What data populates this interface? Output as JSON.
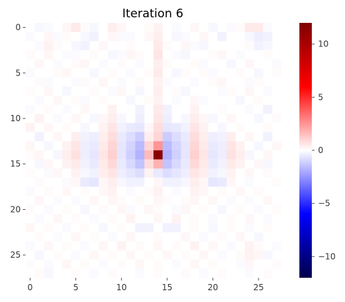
{
  "chart_data": {
    "type": "heatmap",
    "title": "Iteration 6",
    "xlabel": "",
    "ylabel": "",
    "rows": 28,
    "cols": 28,
    "colormap": "seismic",
    "vmin": -12,
    "vmax": 12,
    "x_ticks": [
      0,
      5,
      10,
      15,
      20,
      25
    ],
    "y_ticks": [
      0,
      5,
      10,
      15,
      20,
      25
    ],
    "colorbar_ticks": [
      10,
      5,
      0,
      -5,
      -10
    ],
    "colorbar_tick_labels": [
      "10",
      "5",
      "0",
      "−5",
      "−10"
    ],
    "grid": false,
    "matrix": [
      [
        0,
        -0.2,
        -0.1,
        0,
        0.2,
        0.5,
        0.1,
        -0.2,
        0,
        0.4,
        0.2,
        0,
        0,
        0.1,
        0.3,
        0,
        -0.1,
        0,
        0.2,
        0,
        -0.2,
        0,
        -0.1,
        0.1,
        0.5,
        0.5,
        -0.1,
        0
      ],
      [
        -0.1,
        0,
        0.2,
        -0.1,
        0.1,
        0,
        -0.2,
        -0.3,
        0,
        0.2,
        -0.1,
        -0.1,
        0,
        0.2,
        0.4,
        0,
        -0.2,
        -0.1,
        0,
        0.2,
        0,
        -0.3,
        0,
        0,
        -0.2,
        -0.4,
        -0.3,
        0
      ],
      [
        0,
        -0.1,
        0.3,
        0.1,
        0,
        -0.2,
        -0.3,
        0,
        0.2,
        0,
        0,
        0.1,
        0,
        0,
        0.5,
        0.1,
        0,
        0.2,
        -0.1,
        -0.2,
        0,
        0,
        0,
        0,
        0.1,
        -0.3,
        -0.2,
        0
      ],
      [
        0.1,
        0,
        0.2,
        0,
        -0.1,
        -0.1,
        0,
        0.1,
        0,
        -0.2,
        -0.1,
        0.2,
        0.1,
        0,
        0.6,
        0,
        -0.1,
        -0.2,
        0,
        0,
        0.1,
        0.2,
        0,
        -0.1,
        0,
        0,
        0.1,
        0
      ],
      [
        0,
        0.2,
        0,
        -0.1,
        0,
        0.1,
        0.2,
        0,
        -0.1,
        0,
        0.1,
        0,
        -0.1,
        0,
        0.4,
        0.1,
        0,
        0,
        0.1,
        -0.1,
        0,
        0,
        -0.2,
        0,
        0.2,
        0,
        0,
        -0.1
      ],
      [
        -0.1,
        0,
        0,
        0.1,
        0.2,
        0,
        0,
        -0.2,
        0,
        0.1,
        0,
        -0.1,
        0,
        0.1,
        0.5,
        0,
        -0.2,
        0.1,
        0,
        0.1,
        -0.1,
        0,
        0,
        0.1,
        0,
        -0.2,
        0,
        0.1
      ],
      [
        0,
        0.1,
        -0.1,
        0,
        0,
        -0.1,
        0.1,
        0,
        0.2,
        0,
        -0.1,
        0,
        0.1,
        0,
        0.3,
        -0.1,
        0,
        0,
        -0.1,
        0,
        0.1,
        0.2,
        0,
        0,
        -0.1,
        0.1,
        0,
        0
      ],
      [
        0.1,
        0,
        0.2,
        0,
        -0.2,
        0,
        0,
        0.1,
        0,
        -0.1,
        0.2,
        0,
        -0.2,
        0,
        0.4,
        0,
        0.1,
        -0.2,
        0,
        0,
        0,
        -0.1,
        0.1,
        0,
        0.2,
        0,
        -0.1,
        0
      ],
      [
        0,
        -0.1,
        0,
        0.2,
        0,
        0.1,
        -0.1,
        0,
        0.1,
        0,
        0,
        -0.2,
        0,
        0.1,
        0.3,
        0,
        -0.1,
        0,
        0.2,
        -0.1,
        0,
        0,
        0,
        -0.2,
        0,
        0.1,
        0,
        0
      ],
      [
        -0.1,
        0,
        0.1,
        0,
        -0.1,
        0,
        0.2,
        0,
        0,
        0.3,
        0,
        0,
        -0.3,
        0,
        0.5,
        -0.3,
        0,
        0,
        0.3,
        0,
        0,
        0.1,
        0,
        0,
        -0.1,
        0,
        -0.3,
        0
      ],
      [
        0,
        0.3,
        0,
        -0.1,
        0,
        0.2,
        0,
        -0.2,
        0.2,
        0.4,
        -0.2,
        0,
        -0.4,
        0,
        0.6,
        -0.4,
        0,
        -0.2,
        0.4,
        0.2,
        -0.2,
        0,
        0.2,
        0,
        0,
        -0.2,
        0,
        0.1
      ],
      [
        0.3,
        0,
        0.2,
        0,
        0.1,
        0,
        -0.2,
        0,
        0.3,
        0.6,
        -0.3,
        -0.5,
        -0.6,
        0.2,
        0.8,
        -0.6,
        -0.5,
        -0.3,
        0.6,
        0.3,
        0,
        -0.2,
        0,
        0.1,
        0,
        0,
        0.1,
        0
      ],
      [
        0,
        -0.3,
        0,
        0.2,
        0,
        0.4,
        -0.3,
        -0.4,
        0.4,
        0.8,
        -0.5,
        -0.8,
        -1.2,
        0.4,
        1.0,
        -1.2,
        -0.8,
        -0.5,
        0.8,
        0.4,
        -0.4,
        -0.3,
        0.4,
        0,
        0.2,
        0,
        -0.3,
        0
      ],
      [
        0.2,
        0,
        -0.2,
        0,
        0.3,
        0.6,
        -0.4,
        -0.5,
        0.5,
        1.0,
        -0.6,
        -1.0,
        -1.6,
        1.0,
        2.5,
        -1.6,
        -1.0,
        -0.6,
        1.0,
        0.5,
        -0.5,
        -0.4,
        0.6,
        0.3,
        0,
        -0.2,
        0,
        0.2
      ],
      [
        0.1,
        0.2,
        0,
        -0.2,
        0.4,
        0.7,
        -0.4,
        -0.6,
        0.6,
        1.1,
        -0.6,
        -1.1,
        -1.8,
        1.6,
        11.5,
        -1.8,
        -1.1,
        -0.6,
        1.1,
        0.6,
        -0.6,
        -0.4,
        0.7,
        0.4,
        -0.2,
        0,
        0.2,
        0
      ],
      [
        0,
        -0.2,
        0.2,
        0,
        0.3,
        0.5,
        -0.3,
        -0.5,
        0.5,
        0.9,
        -0.5,
        -0.9,
        -1.4,
        0.8,
        1.8,
        -1.4,
        -0.9,
        -0.5,
        0.9,
        0.5,
        -0.5,
        -0.3,
        0.5,
        0.3,
        0,
        0.2,
        -0.2,
        0
      ],
      [
        0.1,
        0,
        -0.1,
        0.2,
        0,
        0.3,
        -0.2,
        -0.3,
        0.4,
        0.6,
        -0.4,
        -0.6,
        -0.8,
        0.3,
        -0.5,
        -0.8,
        -0.6,
        -0.4,
        0.6,
        0.4,
        -0.3,
        -0.2,
        0.3,
        0,
        0.2,
        0,
        0.1,
        0
      ],
      [
        0,
        0.1,
        0,
        0,
        -0.1,
        0.2,
        -0.5,
        -0.6,
        0.2,
        0.4,
        -0.2,
        -0.3,
        -0.3,
        0,
        0.2,
        -0.3,
        -0.3,
        -0.2,
        0.4,
        0.2,
        -0.6,
        -0.5,
        0.2,
        0,
        -0.1,
        0,
        0,
        0.1
      ],
      [
        -0.1,
        0,
        0.1,
        0,
        0.2,
        0,
        0.1,
        0,
        0.2,
        0.3,
        0,
        -0.1,
        0,
        0.1,
        0.3,
        0,
        -0.1,
        0,
        0.3,
        0.2,
        0,
        0.1,
        0,
        0.2,
        0,
        0.1,
        0,
        0
      ],
      [
        0,
        0.2,
        0,
        -0.1,
        0,
        -0.1,
        0,
        0.2,
        0,
        0.2,
        0.1,
        0,
        0.1,
        0,
        0.2,
        0.1,
        0,
        0.1,
        0.2,
        0,
        0.2,
        0,
        -0.1,
        0,
        -0.1,
        0,
        0.2,
        0
      ],
      [
        0.1,
        0,
        -0.1,
        0,
        0.1,
        0,
        -0.2,
        0,
        0.1,
        0,
        0.2,
        -0.1,
        0,
        0.2,
        0.1,
        0,
        -0.1,
        0.2,
        0,
        0.1,
        0,
        -0.2,
        0,
        0.1,
        0,
        -0.1,
        0,
        0.1
      ],
      [
        0,
        -0.1,
        0,
        0.2,
        0,
        0.1,
        0,
        -0.1,
        0,
        0.1,
        0,
        0.3,
        0,
        0,
        0.2,
        0,
        0.3,
        0,
        0.1,
        0,
        -0.1,
        0,
        0.1,
        0,
        0.2,
        0,
        -0.1,
        0
      ],
      [
        0.2,
        0,
        0.1,
        0,
        -0.1,
        0,
        0.1,
        0,
        -0.2,
        0,
        0.1,
        0,
        -0.3,
        -0.3,
        0,
        -0.3,
        -0.3,
        0,
        0.1,
        0,
        -0.2,
        0,
        0.1,
        0,
        -0.1,
        0,
        0.1,
        0
      ],
      [
        0,
        0.1,
        0,
        -0.1,
        0,
        0.2,
        0,
        0.1,
        0,
        -0.1,
        0,
        0.2,
        0,
        0,
        0.1,
        0,
        0,
        0.2,
        0,
        -0.1,
        0,
        0.1,
        0,
        0.2,
        0,
        -0.2,
        0,
        0
      ],
      [
        -0.1,
        0,
        0.2,
        0,
        0.1,
        0,
        -0.1,
        0,
        0.2,
        0,
        0.3,
        0,
        0.1,
        0,
        0.2,
        0,
        0.1,
        0,
        0.3,
        0,
        0.2,
        0,
        -0.1,
        0,
        0.3,
        0.1,
        0,
        -0.1
      ],
      [
        0,
        -0.2,
        0,
        0.1,
        0,
        -0.1,
        0,
        0.2,
        0,
        0.1,
        0,
        0.2,
        0,
        0.1,
        0,
        0.2,
        0,
        0.1,
        0,
        0.2,
        0,
        -0.1,
        0,
        0.1,
        0.3,
        0.2,
        -0.2,
        0
      ],
      [
        0.1,
        0,
        -0.1,
        0,
        0.2,
        0,
        0.1,
        0,
        -0.1,
        0,
        0.1,
        0,
        0.2,
        0,
        0.1,
        0,
        -0.1,
        0,
        0.2,
        0,
        0.1,
        0,
        0,
        -0.1,
        0.2,
        0,
        0,
        0.1
      ],
      [
        0,
        0.1,
        -0.2,
        0,
        0,
        0.1,
        0,
        -0.1,
        0,
        0.1,
        0,
        0,
        -0.1,
        0,
        0.1,
        0,
        0,
        0.1,
        0,
        -0.1,
        0,
        0.1,
        0,
        0,
        -0.1,
        0,
        0.1,
        0
      ]
    ]
  }
}
